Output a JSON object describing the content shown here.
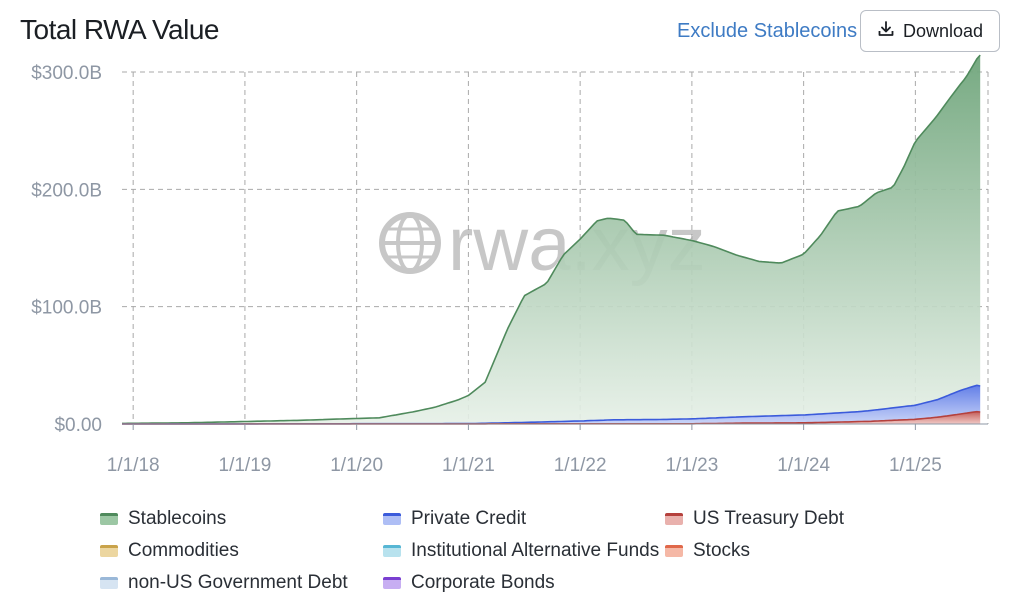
{
  "header": {
    "title": "Total RWA Value",
    "toggle_label": "Exclude Stablecoins",
    "download_label": "Download"
  },
  "watermark": {
    "text": "rwa.xyz"
  },
  "chart_data": {
    "type": "area",
    "stacked": true,
    "title": "Total RWA Value",
    "ylim": [
      0,
      300
    ],
    "y_unit": "B USD",
    "y_ticks": [
      "$0.00",
      "$100.0B",
      "$200.0B",
      "$300.0B"
    ],
    "x_ticks": [
      "1/1/18",
      "1/1/19",
      "1/1/20",
      "1/1/21",
      "1/1/22",
      "1/1/23",
      "1/1/24",
      "1/1/25"
    ],
    "xlim": [
      2017.9,
      2025.65
    ],
    "grid": true,
    "legend_position": "bottom",
    "series": [
      {
        "name": "US Treasury Debt",
        "color": "#b5413d",
        "fill": "#e9b1ad",
        "points": [
          [
            2017.9,
            0
          ],
          [
            2023.0,
            0.2
          ],
          [
            2023.5,
            0.8
          ],
          [
            2024.0,
            1.0
          ],
          [
            2024.3,
            1.6
          ],
          [
            2024.6,
            2.3
          ],
          [
            2025.0,
            4.0
          ],
          [
            2025.2,
            5.8
          ],
          [
            2025.4,
            8.5
          ],
          [
            2025.55,
            10.5
          ],
          [
            2025.6,
            10.0
          ]
        ]
      },
      {
        "name": "Private Credit",
        "color": "#3b5bdb",
        "fill": "#aebef5",
        "points": [
          [
            2017.9,
            0
          ],
          [
            2021.0,
            0.2
          ],
          [
            2021.5,
            1.2
          ],
          [
            2022.0,
            2.4
          ],
          [
            2022.3,
            3.4
          ],
          [
            2022.7,
            3.6
          ],
          [
            2023.0,
            4.2
          ],
          [
            2023.5,
            5.5
          ],
          [
            2024.0,
            6.7
          ],
          [
            2024.5,
            8.5
          ],
          [
            2025.0,
            12.0
          ],
          [
            2025.2,
            15.0
          ],
          [
            2025.4,
            20.0
          ],
          [
            2025.55,
            22.5
          ],
          [
            2025.6,
            22.0
          ]
        ]
      },
      {
        "name": "Stablecoins",
        "color": "#4f8a5c",
        "points": [
          [
            2017.9,
            0.5
          ],
          [
            2018.5,
            1.0
          ],
          [
            2019.0,
            2.0
          ],
          [
            2019.5,
            3.0
          ],
          [
            2020.0,
            4.5
          ],
          [
            2020.2,
            5.0
          ],
          [
            2020.5,
            10.0
          ],
          [
            2020.7,
            14.0
          ],
          [
            2020.9,
            20.0
          ],
          [
            2021.0,
            24.0
          ],
          [
            2021.15,
            35.0
          ],
          [
            2021.35,
            80.0
          ],
          [
            2021.5,
            108.0
          ],
          [
            2021.7,
            118.0
          ],
          [
            2021.85,
            142.0
          ],
          [
            2022.0,
            155.0
          ],
          [
            2022.15,
            170.0
          ],
          [
            2022.25,
            172.0
          ],
          [
            2022.4,
            170.0
          ],
          [
            2022.5,
            158.0
          ],
          [
            2022.75,
            157.0
          ],
          [
            2023.0,
            152.0
          ],
          [
            2023.2,
            146.0
          ],
          [
            2023.4,
            138.0
          ],
          [
            2023.6,
            132.0
          ],
          [
            2023.8,
            130.0
          ],
          [
            2024.0,
            137.0
          ],
          [
            2024.15,
            152.0
          ],
          [
            2024.3,
            172.0
          ],
          [
            2024.5,
            175.0
          ],
          [
            2024.65,
            185.0
          ],
          [
            2024.8,
            188.0
          ],
          [
            2024.9,
            205.0
          ],
          [
            2025.0,
            225.0
          ],
          [
            2025.15,
            238.0
          ],
          [
            2025.3,
            252.0
          ],
          [
            2025.45,
            265.0
          ],
          [
            2025.58,
            282.0
          ]
        ]
      },
      {
        "name": "Commodities",
        "color": "#c9a34a",
        "fill": "#ecd6a0",
        "points": []
      },
      {
        "name": "Institutional Alternative Funds",
        "color": "#57b6d4",
        "fill": "#b8e2ee",
        "points": []
      },
      {
        "name": "Stocks",
        "color": "#e0684a",
        "fill": "#f5b8a6",
        "points": []
      },
      {
        "name": "non-US Government Debt",
        "color": "#9ab8d8",
        "fill": "#d6e4f2",
        "points": []
      },
      {
        "name": "Corporate Bonds",
        "color": "#7a3fd1",
        "fill": "#c7aef2",
        "points": []
      }
    ],
    "legend": [
      "Stablecoins",
      "Private Credit",
      "US Treasury Debt",
      "Commodities",
      "Institutional Alternative Funds",
      "Stocks",
      "non-US Government Debt",
      "Corporate Bonds"
    ]
  }
}
